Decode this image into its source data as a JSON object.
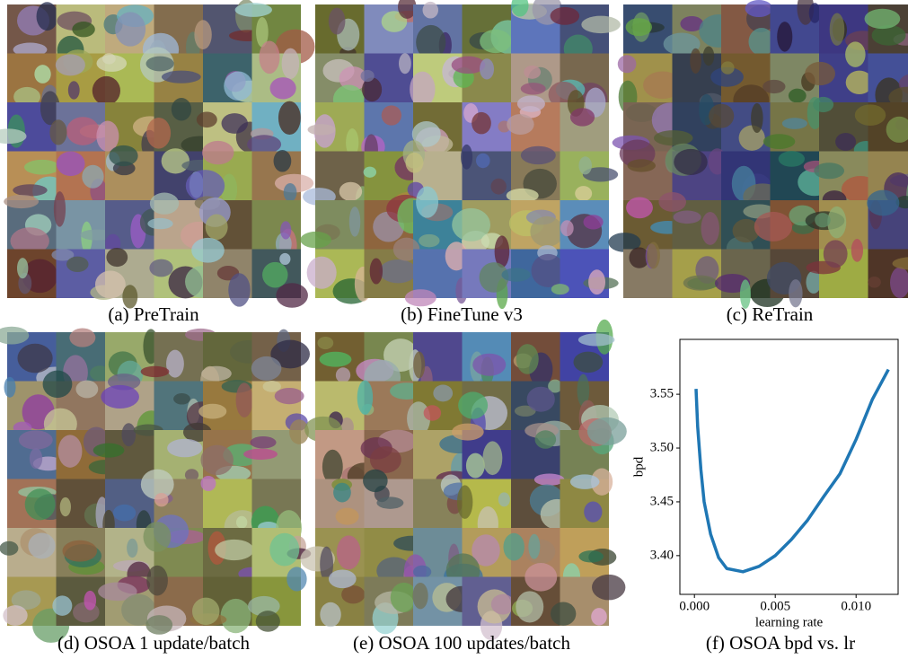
{
  "panels": [
    {
      "caption": "(a) PreTrain"
    },
    {
      "caption": "(b) FineTune v3"
    },
    {
      "caption": "(c) ReTrain"
    },
    {
      "caption": "(d) OSOA 1 update/batch"
    },
    {
      "caption": "(e) OSOA 100 updates/batch"
    },
    {
      "caption": "(f) OSOA bpd vs. lr"
    }
  ],
  "chart_data": {
    "type": "line",
    "x_label": "learning rate",
    "y_label": "bpd",
    "x": [
      0.0001,
      0.0002,
      0.0004,
      0.0006,
      0.001,
      0.0015,
      0.002,
      0.003,
      0.004,
      0.005,
      0.006,
      0.007,
      0.008,
      0.009,
      0.01,
      0.011,
      0.012
    ],
    "series": [
      {
        "color": "#1f77b4",
        "values": [
          3.555,
          3.52,
          3.48,
          3.45,
          3.42,
          3.398,
          3.388,
          3.385,
          3.39,
          3.4,
          3.415,
          3.433,
          3.455,
          3.476,
          3.508,
          3.545,
          3.573
        ]
      }
    ],
    "xlim": [
      -0.0009,
      0.0126
    ],
    "ylim": [
      3.364,
      3.601
    ],
    "xticks": [
      {
        "value": 0,
        "label": "0.000"
      },
      0.005,
      {
        "value": 0.01,
        "label": "0.010"
      }
    ],
    "yticks": [
      {
        "value": 3.4,
        "label": "3.40"
      },
      3.45,
      {
        "value": 3.5,
        "label": "3.50"
      },
      3.55
    ],
    "grid": false
  }
}
